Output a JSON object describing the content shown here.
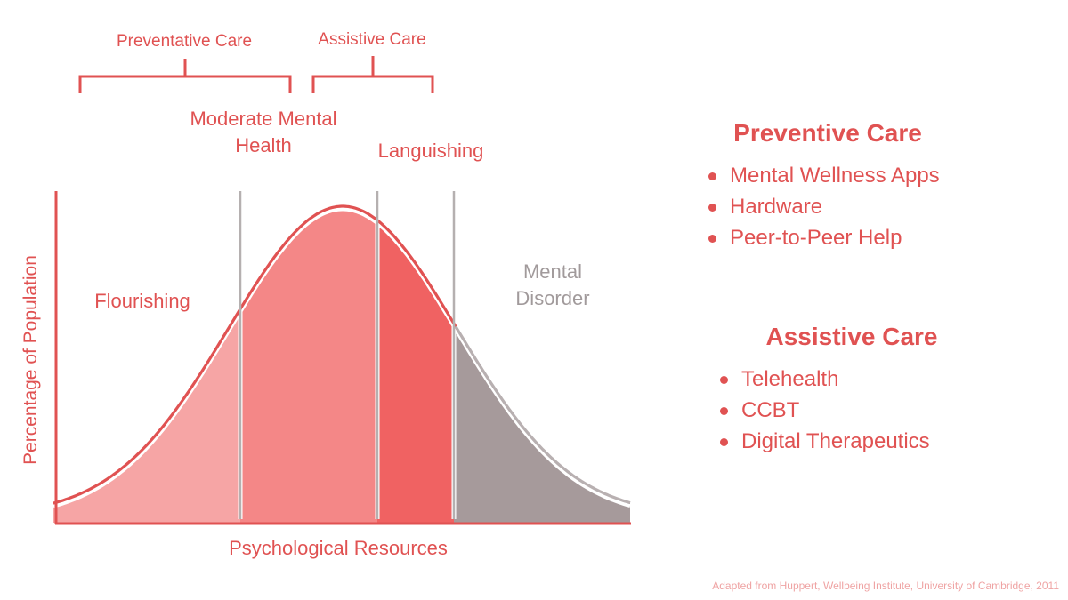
{
  "diagram": {
    "brackets": [
      {
        "label": "Preventative Care"
      },
      {
        "label": "Assistive Care"
      }
    ],
    "regions": [
      {
        "label_lines": [
          "Flourishing"
        ],
        "color": "#f6a5a5"
      },
      {
        "label_lines": [
          "Moderate Mental",
          "Health"
        ],
        "color": "#f48787"
      },
      {
        "label_lines": [
          "Languishing"
        ],
        "color": "#f06262"
      },
      {
        "label_lines": [
          "Mental",
          "Disorder"
        ],
        "color": "#a69a9b"
      }
    ],
    "y_axis_label": "Percentage of Population",
    "x_axis_label": "Psychological Resources",
    "outline_color": "#e05252",
    "tail_color": "#b8b0b1"
  },
  "preventive": {
    "title": "Preventive Care",
    "items": [
      "Mental Wellness Apps",
      "Hardware",
      "Peer-to-Peer Help"
    ]
  },
  "assistive": {
    "title": "Assistive Care",
    "items": [
      "Telehealth",
      "CCBT",
      "Digital Therapeutics"
    ]
  },
  "source_note": "Adapted from Huppert, Wellbeing Institute, University of Cambridge, 2011",
  "colors": {
    "accent": "#e05252",
    "muted_gray": "#a19a9b",
    "source_text": "#efa3a3"
  }
}
